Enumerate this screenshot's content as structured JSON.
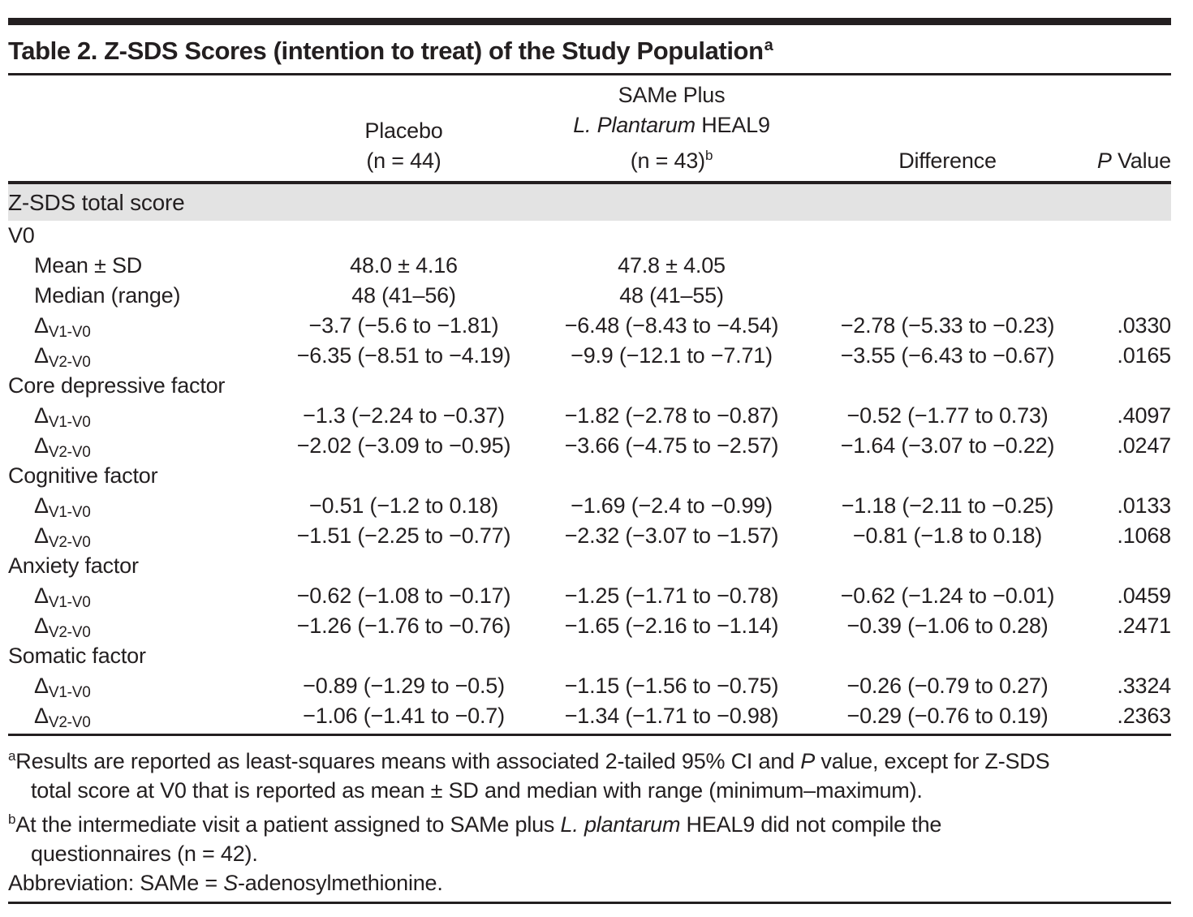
{
  "colors": {
    "rule": "#231f20",
    "text": "#231f20",
    "band_bg": "#e3e3e3"
  },
  "title": {
    "text": "Table 2. Z-SDS Scores (intention to treat) of the Study Population",
    "sup": "a"
  },
  "table": {
    "columns": {
      "placebo": {
        "line1": "Placebo",
        "line2": "(n = 44)"
      },
      "same": {
        "line1": "SAMe Plus",
        "line2_italic": "L. Plantarum",
        "line2_rest": " HEAL9",
        "line3": "(n = 43)",
        "line3_sup": "b"
      },
      "difference": "Difference",
      "pvalue": {
        "italic": "P",
        "rest": " Value"
      }
    },
    "band": "Z-SDS total score",
    "rows": [
      {
        "type": "section",
        "label": "V0"
      },
      {
        "type": "data",
        "label": "Mean ± SD",
        "placebo": "48.0 ± 4.16",
        "same": "47.8 ± 4.05",
        "difference": "",
        "p": ""
      },
      {
        "type": "data",
        "label": "Median (range)",
        "placebo": "48 (41–56)",
        "same": "48 (41–55)",
        "difference": "",
        "p": ""
      },
      {
        "type": "delta",
        "label": "Δ",
        "sub": "V1-V0",
        "placebo": "−3.7 (−5.6 to −1.81)",
        "same": "−6.48 (−8.43 to −4.54)",
        "difference": "−2.78 (−5.33 to −0.23)",
        "p": ".0330"
      },
      {
        "type": "delta",
        "label": "Δ",
        "sub": "V2-V0",
        "placebo": "−6.35 (−8.51 to −4.19)",
        "same": "−9.9 (−12.1 to −7.71)",
        "difference": "−3.55 (−6.43 to −0.67)",
        "p": ".0165"
      },
      {
        "type": "section",
        "label": "Core depressive factor"
      },
      {
        "type": "delta",
        "label": "Δ",
        "sub": "V1-V0",
        "placebo": "−1.3 (−2.24 to −0.37)",
        "same": "−1.82 (−2.78 to −0.87)",
        "difference": "−0.52 (−1.77 to 0.73)",
        "p": ".4097"
      },
      {
        "type": "delta",
        "label": "Δ",
        "sub": "V2-V0",
        "placebo": "−2.02 (−3.09 to −0.95)",
        "same": "−3.66 (−4.75 to −2.57)",
        "difference": "−1.64 (−3.07 to −0.22)",
        "p": ".0247"
      },
      {
        "type": "section",
        "label": "Cognitive factor"
      },
      {
        "type": "delta",
        "label": "Δ",
        "sub": "V1-V0",
        "placebo": "−0.51 (−1.2 to 0.18)",
        "same": "−1.69 (−2.4 to −0.99)",
        "difference": "−1.18 (−2.11 to −0.25)",
        "p": ".0133"
      },
      {
        "type": "delta",
        "label": "Δ",
        "sub": "V2-V0",
        "placebo": "−1.51 (−2.25 to −0.77)",
        "same": "−2.32 (−3.07 to −1.57)",
        "difference": "−0.81 (−1.8 to 0.18)",
        "p": ".1068"
      },
      {
        "type": "section",
        "label": "Anxiety factor"
      },
      {
        "type": "delta",
        "label": "Δ",
        "sub": "V1-V0",
        "placebo": "−0.62 (−1.08 to −0.17)",
        "same": "−1.25 (−1.71 to −0.78)",
        "difference": "−0.62 (−1.24 to −0.01)",
        "p": ".0459"
      },
      {
        "type": "delta",
        "label": "Δ",
        "sub": "V2-V0",
        "placebo": "−1.26 (−1.76 to −0.76)",
        "same": "−1.65 (−2.16 to −1.14)",
        "difference": "−0.39 (−1.06 to 0.28)",
        "p": ".2471"
      },
      {
        "type": "section",
        "label": "Somatic factor"
      },
      {
        "type": "delta",
        "label": "Δ",
        "sub": "V1-V0",
        "placebo": "−0.89 (−1.29 to −0.5)",
        "same": "−1.15 (−1.56 to −0.75)",
        "difference": "−0.26 (−0.79 to 0.27)",
        "p": ".3324"
      },
      {
        "type": "delta",
        "label": "Δ",
        "sub": "V2-V0",
        "placebo": "−1.06 (−1.41 to −0.7)",
        "same": "−1.34 (−1.71 to −0.98)",
        "difference": "−0.29 (−0.76 to 0.19)",
        "p": ".2363"
      }
    ]
  },
  "footnotes": [
    {
      "sup": "a",
      "indent": false,
      "parts": [
        {
          "t": "Results are reported as least-squares means with associated 2-tailed 95% CI and "
        },
        {
          "t": "P",
          "i": true
        },
        {
          "t": " value, except for Z-SDS"
        }
      ]
    },
    {
      "sup": "",
      "indent": true,
      "parts": [
        {
          "t": "total score at V0 that is reported as mean ± SD and median with range (minimum–maximum)."
        }
      ]
    },
    {
      "sup": "b",
      "indent": false,
      "parts": [
        {
          "t": "At the intermediate visit a patient assigned to SAMe plus "
        },
        {
          "t": "L. plantarum",
          "i": true
        },
        {
          "t": " HEAL9 did not compile the"
        }
      ]
    },
    {
      "sup": "",
      "indent": true,
      "parts": [
        {
          "t": "questionnaires (n = 42)."
        }
      ]
    },
    {
      "sup": "",
      "indent": false,
      "parts": [
        {
          "t": "Abbreviation: SAMe = "
        },
        {
          "t": "S",
          "i": true
        },
        {
          "t": "-adenosylmethionine."
        }
      ]
    }
  ]
}
